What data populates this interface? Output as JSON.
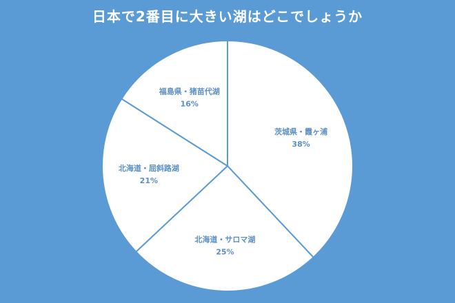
{
  "chart_data": {
    "type": "pie",
    "title": "日本で2番目に大きい湖はどこでしょうか",
    "start": "top",
    "direction": "clockwise",
    "slices": [
      {
        "label": "茨城県・霞ヶ浦",
        "value": 38,
        "value_label": "38%"
      },
      {
        "label": "北海道・サロマ湖",
        "value": 25,
        "value_label": "25%"
      },
      {
        "label": "北海道・屈斜路湖",
        "value": 21,
        "value_label": "21%"
      },
      {
        "label": "福島県・猪苗代湖",
        "value": 16,
        "value_label": "16%"
      }
    ],
    "colors": {
      "background": "#5b9bd5",
      "slice_fill": "#ffffff",
      "slice_border": "#5b9bd5",
      "label": "#5b8fc4",
      "title": "#ffffff"
    },
    "legend": "none"
  }
}
